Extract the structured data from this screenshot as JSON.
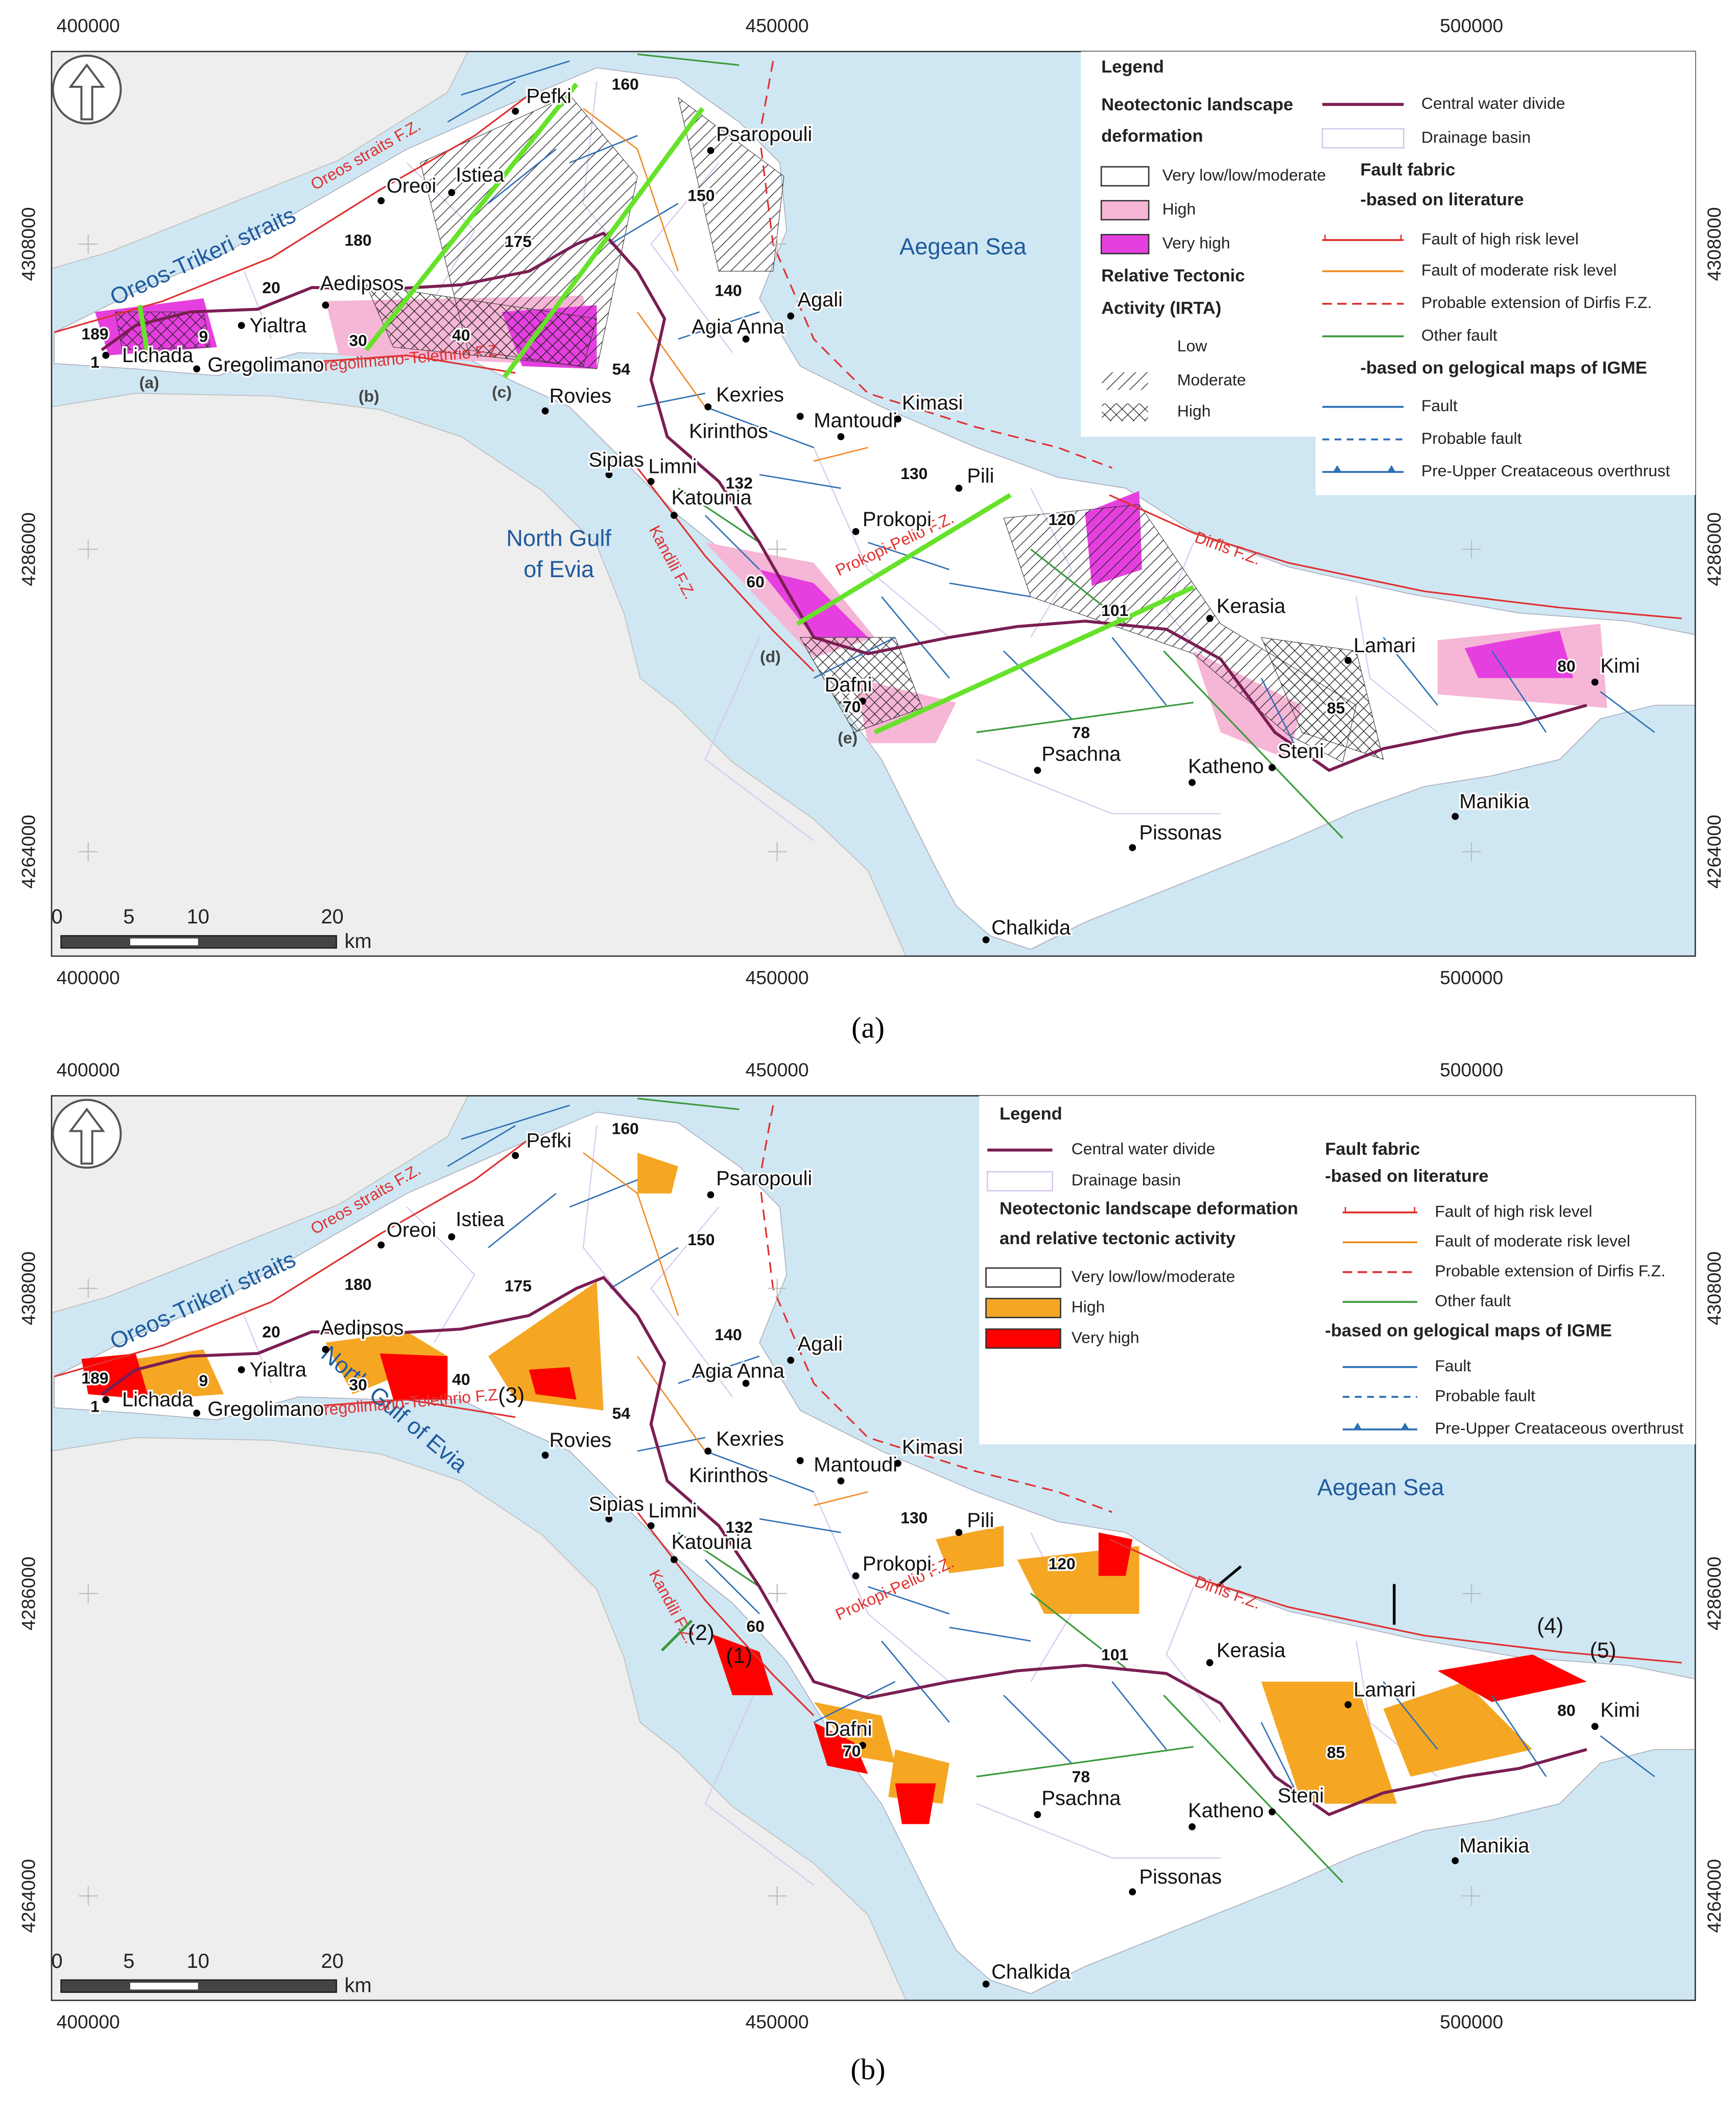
{
  "panel_a": {
    "caption": "(a)",
    "x_labels": [
      "400000",
      "450000",
      "500000"
    ],
    "y_labels": [
      "4308000",
      "4286000",
      "4264000"
    ],
    "places": [
      "Pefki",
      "Psaropouli",
      "Oreoi",
      "Istiea",
      "Aedipsos",
      "Yialtra",
      "Lichada",
      "Gregolimano",
      "Rovies",
      "Agia Anna",
      "Agali",
      "Kexries",
      "Kirinthos",
      "Mantoudi",
      "Kimasi",
      "Limni",
      "Sipias",
      "Katounia",
      "Prokopi",
      "Pili",
      "Kerasia",
      "Lamari",
      "Kimi",
      "Dafni",
      "Psachna",
      "Katheno",
      "Steni",
      "Manikia",
      "Pissonas",
      "Chalkida"
    ],
    "basins": [
      "160",
      "150",
      "175",
      "180",
      "20",
      "9",
      "189",
      "1",
      "30",
      "40",
      "54",
      "140",
      "132",
      "130",
      "120",
      "101",
      "60",
      "70",
      "78",
      "85",
      "80"
    ],
    "faults": [
      "Oreos straits F.Z.",
      "Gregolimano-Telethrio F.Z.",
      "Kandili F.Z.",
      "Prokopi-Pelio F.Z.",
      "Dirfis F.Z."
    ],
    "seas": [
      "Oreos-Trikeri straits",
      "Aegean Sea",
      [
        "North Gulf",
        "of Evia"
      ]
    ],
    "profiles": [
      "(a)",
      "(b)",
      "(c)",
      "(d)",
      "(e)"
    ],
    "scale": [
      "0",
      "5",
      "10",
      "20",
      "km"
    ],
    "legend": {
      "title": "Legend",
      "deformation_heading": [
        "Neotectonic landscape",
        "deformation"
      ],
      "deformation_classes": [
        "Very low/low/moderate",
        "High",
        "Very high"
      ],
      "irta_heading": [
        "Relative Tectonic",
        "Activity (IRTA)"
      ],
      "irta_classes": [
        "Low",
        "Moderate",
        "High"
      ],
      "divide": "Central water divide",
      "basin": "Drainage basin",
      "fault_heading": "Fault fabric",
      "literature_heading": "-based on literature",
      "literature_faults": [
        "Fault of high risk level",
        "Fault of moderate risk level",
        "Probable extension of Dirfis F.Z.",
        "Other fault"
      ],
      "igme_heading": "-based on gelogical maps of IGME",
      "igme_faults": [
        "Fault",
        "Probable fault",
        "Pre-Upper Creataceous overthrust"
      ]
    }
  },
  "panel_b": {
    "caption": "(b)",
    "x_labels": [
      "400000",
      "450000",
      "500000"
    ],
    "y_labels": [
      "4308000",
      "4286000",
      "4264000"
    ],
    "places": [
      "Pefki",
      "Psaropouli",
      "Oreoi",
      "Istiea",
      "Aedipsos",
      "Yialtra",
      "Lichada",
      "Gregolimano",
      "Rovies",
      "Agia Anna",
      "Agali",
      "Kexries",
      "Kirinthos",
      "Mantoudi",
      "Kimasi",
      "Limni",
      "Sipias",
      "Katounia",
      "Prokopi",
      "Pili",
      "Kerasia",
      "Lamari",
      "Kimi",
      "Dafni",
      "Psachna",
      "Katheno",
      "Steni",
      "Manikia",
      "Pissonas",
      "Chalkida"
    ],
    "basins": [
      "160",
      "150",
      "175",
      "180",
      "20",
      "9",
      "189",
      "1",
      "30",
      "40",
      "54",
      "140",
      "132",
      "130",
      "120",
      "101",
      "60",
      "70",
      "78",
      "85",
      "80"
    ],
    "faults": [
      "Oreos straits F.Z.",
      "Gregolimano-Telethrio F.Z.",
      "Kandili F.Z.",
      "Prokopi-Pelio F.Z.",
      "Dirfis F.Z."
    ],
    "seas": [
      "Oreos-Trikeri straits",
      "Aegean Sea",
      "North Gulf of Evia"
    ],
    "markers": [
      "(1)",
      "(2)",
      "(3)",
      "(4)",
      "(5)"
    ],
    "scale": [
      "0",
      "5",
      "10",
      "20",
      "km"
    ],
    "legend": {
      "title": "Legend",
      "divide": "Central water divide",
      "basin": "Drainage basin",
      "deformation_heading": [
        "Neotectonic landscape deformation",
        "and relative tectonic activity"
      ],
      "deformation_classes": [
        "Very low/low/moderate",
        "High",
        "Very high"
      ],
      "fault_heading": "Fault fabric",
      "literature_heading": "-based on literature",
      "literature_faults": [
        "Fault of high risk level",
        "Fault of moderate risk level",
        "Probable extension of Dirfis F.Z.",
        "Other fault"
      ],
      "igme_heading": "-based on gelogical maps of IGME",
      "igme_faults": [
        "Fault",
        "Probable fault",
        "Pre-Upper Creataceous overthrust"
      ]
    }
  }
}
